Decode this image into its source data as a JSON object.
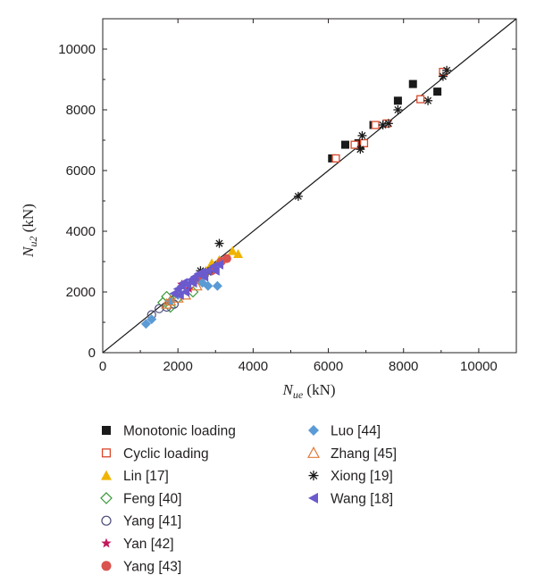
{
  "chart_data": {
    "type": "scatter",
    "xlabel": {
      "main": "N",
      "sub": "ue",
      "unit": " (kN)"
    },
    "ylabel": {
      "main": "N",
      "sub": "u2",
      "unit": " (kN)"
    },
    "xlim": [
      0,
      11000
    ],
    "ylim": [
      0,
      11000
    ],
    "xticks": [
      0,
      2000,
      4000,
      6000,
      8000,
      10000
    ],
    "yticks": [
      0,
      2000,
      4000,
      6000,
      8000,
      10000
    ],
    "tick_labels_x": [
      "0",
      "2000",
      "4000",
      "6000",
      "8000",
      "10000"
    ],
    "tick_labels_y": [
      "0",
      "2000",
      "4000",
      "6000",
      "8000",
      "10000"
    ],
    "reference_line": {
      "from": [
        0,
        0
      ],
      "to": [
        11000,
        11000
      ]
    },
    "grid": false,
    "legend_position": "bottom",
    "series": [
      {
        "name": "Monotonic loading",
        "marker": "square-filled",
        "color": "#1a1a1a",
        "points": [
          [
            6100,
            6400
          ],
          [
            6450,
            6850
          ],
          [
            6850,
            6850
          ],
          [
            7850,
            8300
          ],
          [
            8250,
            8850
          ],
          [
            8900,
            8600
          ],
          [
            7200,
            7500
          ],
          [
            6800,
            6900
          ]
        ]
      },
      {
        "name": "Cyclic loading",
        "marker": "square-open",
        "color": "#d9472b",
        "points": [
          [
            6200,
            6400
          ],
          [
            6700,
            6850
          ],
          [
            6950,
            6900
          ],
          [
            7250,
            7500
          ],
          [
            7550,
            7550
          ],
          [
            8450,
            8350
          ],
          [
            9050,
            9250
          ]
        ]
      },
      {
        "name": "Lin [17]",
        "marker": "triangle-filled",
        "color": "#f0b400",
        "points": [
          [
            2900,
            2950
          ],
          [
            3100,
            3050
          ],
          [
            3450,
            3350
          ],
          [
            3600,
            3250
          ],
          [
            2750,
            2700
          ]
        ]
      },
      {
        "name": "Feng [40]",
        "marker": "diamond-open",
        "color": "#3a9a3a",
        "points": [
          [
            1600,
            1650
          ],
          [
            1800,
            1500
          ],
          [
            2000,
            1800
          ],
          [
            2400,
            2000
          ],
          [
            1700,
            1850
          ]
        ]
      },
      {
        "name": "Yang [41]",
        "marker": "circle-open",
        "color": "#4a4a7a",
        "points": [
          [
            1300,
            1250
          ],
          [
            1500,
            1450
          ],
          [
            1700,
            1500
          ],
          [
            1900,
            1600
          ]
        ]
      },
      {
        "name": "Yan [42]",
        "marker": "star",
        "color": "#c2185b",
        "points": [
          [
            2100,
            2250
          ],
          [
            2300,
            2100
          ],
          [
            2500,
            2350
          ]
        ]
      },
      {
        "name": "Yang [43]",
        "marker": "circle-filled",
        "color": "#d9534f",
        "points": [
          [
            3300,
            3100
          ],
          [
            3150,
            3000
          ],
          [
            2600,
            2450
          ],
          [
            2900,
            2700
          ]
        ]
      },
      {
        "name": "Luo [44]",
        "marker": "diamond-filled",
        "color": "#5b9bd5",
        "points": [
          [
            1150,
            950
          ],
          [
            1300,
            1100
          ],
          [
            2800,
            2200
          ],
          [
            3050,
            2200
          ],
          [
            2650,
            2300
          ],
          [
            2000,
            1900
          ],
          [
            1800,
            1700
          ]
        ]
      },
      {
        "name": "Zhang [45]",
        "marker": "triangle-open",
        "color": "#e07b39",
        "points": [
          [
            1800,
            1700
          ],
          [
            2000,
            1800
          ],
          [
            2200,
            1900
          ],
          [
            2500,
            2200
          ],
          [
            1700,
            1600
          ]
        ]
      },
      {
        "name": "Xiong [19]",
        "marker": "asterisk",
        "color": "#1a1a1a",
        "points": [
          [
            3100,
            3600
          ],
          [
            2600,
            2700
          ],
          [
            2800,
            2650
          ],
          [
            5200,
            5150
          ],
          [
            6850,
            6700
          ],
          [
            6900,
            7150
          ],
          [
            7450,
            7500
          ],
          [
            7600,
            7550
          ],
          [
            7850,
            8000
          ],
          [
            8650,
            8300
          ],
          [
            9050,
            9100
          ],
          [
            9150,
            9300
          ]
        ]
      },
      {
        "name": "Wang [18]",
        "marker": "triangle-left-filled",
        "color": "#6a5acd",
        "points": [
          [
            1900,
            1950
          ],
          [
            2000,
            2100
          ],
          [
            2100,
            2200
          ],
          [
            2150,
            2300
          ],
          [
            2250,
            2250
          ],
          [
            2350,
            2400
          ],
          [
            2450,
            2500
          ],
          [
            2550,
            2600
          ],
          [
            2650,
            2650
          ],
          [
            2800,
            2700
          ],
          [
            2950,
            2850
          ],
          [
            3100,
            2900
          ],
          [
            2200,
            2000
          ],
          [
            2400,
            2300
          ],
          [
            2700,
            2500
          ],
          [
            3000,
            2700
          ],
          [
            2050,
            1900
          ]
        ]
      }
    ]
  }
}
